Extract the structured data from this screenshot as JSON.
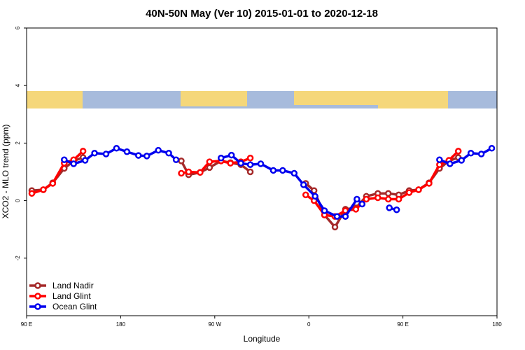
{
  "chart_data": {
    "type": "line",
    "title": "40N-50N May (Ver 10)   2015-01-01 to 2020-12-18",
    "x_label": "Longitude",
    "y_label": "XCO2 - MLO trend (ppm)",
    "xlim": [
      90,
      540
    ],
    "xticks": [
      {
        "value": 90,
        "label": "90 E"
      },
      180,
      {
        "value": 270,
        "label": "90 W"
      },
      {
        "value": 360,
        "label": "0"
      },
      {
        "value": 450,
        "label": "90 E"
      },
      {
        "value": 540,
        "label": "180"
      }
    ],
    "ylim": [
      -4,
      6
    ],
    "yticks": [
      -2,
      0,
      2,
      4,
      6
    ],
    "legend": "bottom-left",
    "series": [
      {
        "name": "Land Nadir",
        "color": "#a52a2a",
        "x": [
          95,
          106,
          115,
          126,
          135,
          144,
          null,
          238,
          245,
          256,
          265,
          276,
          285,
          295,
          304,
          null,
          357,
          365,
          375,
          385,
          395,
          405,
          415,
          426,
          436,
          446,
          456,
          465,
          475,
          485,
          494,
          503
        ],
        "values": [
          0.35,
          0.38,
          0.62,
          1.12,
          1.38,
          1.5,
          null,
          1.38,
          0.9,
          0.98,
          1.15,
          1.38,
          1.32,
          1.25,
          1.0,
          null,
          0.6,
          0.35,
          -0.5,
          -0.92,
          -0.3,
          -0.25,
          0.15,
          0.25,
          0.25,
          0.2,
          0.35,
          0.38,
          0.62,
          1.12,
          1.38,
          1.5
        ]
      },
      {
        "name": "Land Glint",
        "color": "#ff0000",
        "x": [
          95,
          106,
          115,
          126,
          135,
          144,
          null,
          238,
          245,
          256,
          265,
          276,
          285,
          295,
          304,
          null,
          357,
          365,
          375,
          385,
          395,
          405,
          415,
          426,
          436,
          446,
          456,
          465,
          475,
          485,
          494,
          503
        ],
        "values": [
          0.25,
          0.38,
          0.6,
          1.3,
          1.42,
          1.72,
          null,
          0.95,
          1.0,
          0.98,
          1.35,
          1.38,
          1.3,
          1.35,
          1.48,
          null,
          0.2,
          0.0,
          -0.5,
          -0.55,
          -0.35,
          -0.3,
          0.05,
          0.1,
          0.05,
          0.05,
          0.28,
          0.38,
          0.6,
          1.25,
          1.4,
          1.72
        ]
      },
      {
        "name": "Ocean Glint",
        "color": "#0000ee",
        "x": [
          126,
          135,
          146,
          155,
          166,
          176,
          186,
          197,
          205,
          216,
          226,
          233,
          null,
          276,
          286,
          295,
          304,
          314,
          326,
          335,
          346,
          355,
          366,
          375,
          387,
          395,
          406,
          411,
          null,
          437,
          444,
          null,
          485,
          495,
          506,
          515,
          525,
          535
        ],
        "values": [
          1.42,
          1.28,
          1.4,
          1.65,
          1.62,
          1.82,
          1.7,
          1.57,
          1.55,
          1.75,
          1.65,
          1.42,
          null,
          1.48,
          1.58,
          1.3,
          1.25,
          1.28,
          1.05,
          1.05,
          0.95,
          0.55,
          0.15,
          -0.35,
          -0.55,
          -0.55,
          0.05,
          -0.12,
          null,
          -0.25,
          -0.32,
          null,
          1.42,
          1.28,
          1.4,
          1.65,
          1.62,
          1.82
        ]
      }
    ]
  }
}
